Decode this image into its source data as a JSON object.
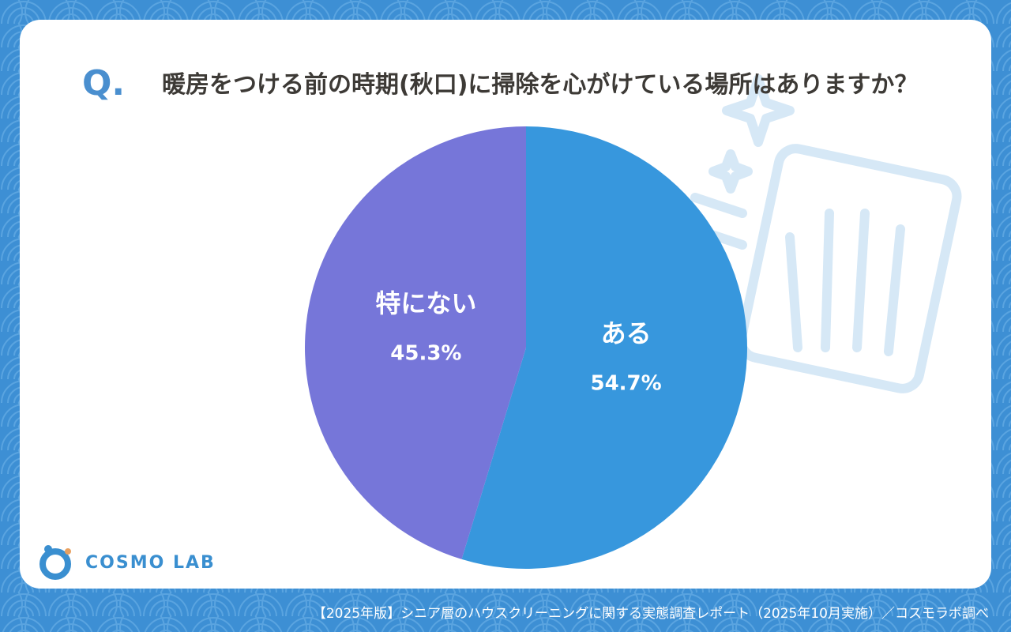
{
  "chart_data": {
    "type": "pie",
    "question_mark": "Q.",
    "title": "暖房をつける前の時期(秋口)に掃除を心がけている場所はありますか？",
    "categories": [
      "ある",
      "特にない"
    ],
    "values": [
      54.7,
      45.3
    ],
    "value_labels": [
      "54.7%",
      "45.3%"
    ],
    "colors": [
      "#3797dd",
      "#7676d9"
    ],
    "logo": "COSMO LAB",
    "source": "【2025年版】シニア層のハウスクリーニングに関する実態調査レポート（2025年10月実施）／コスモラボ調べ"
  }
}
